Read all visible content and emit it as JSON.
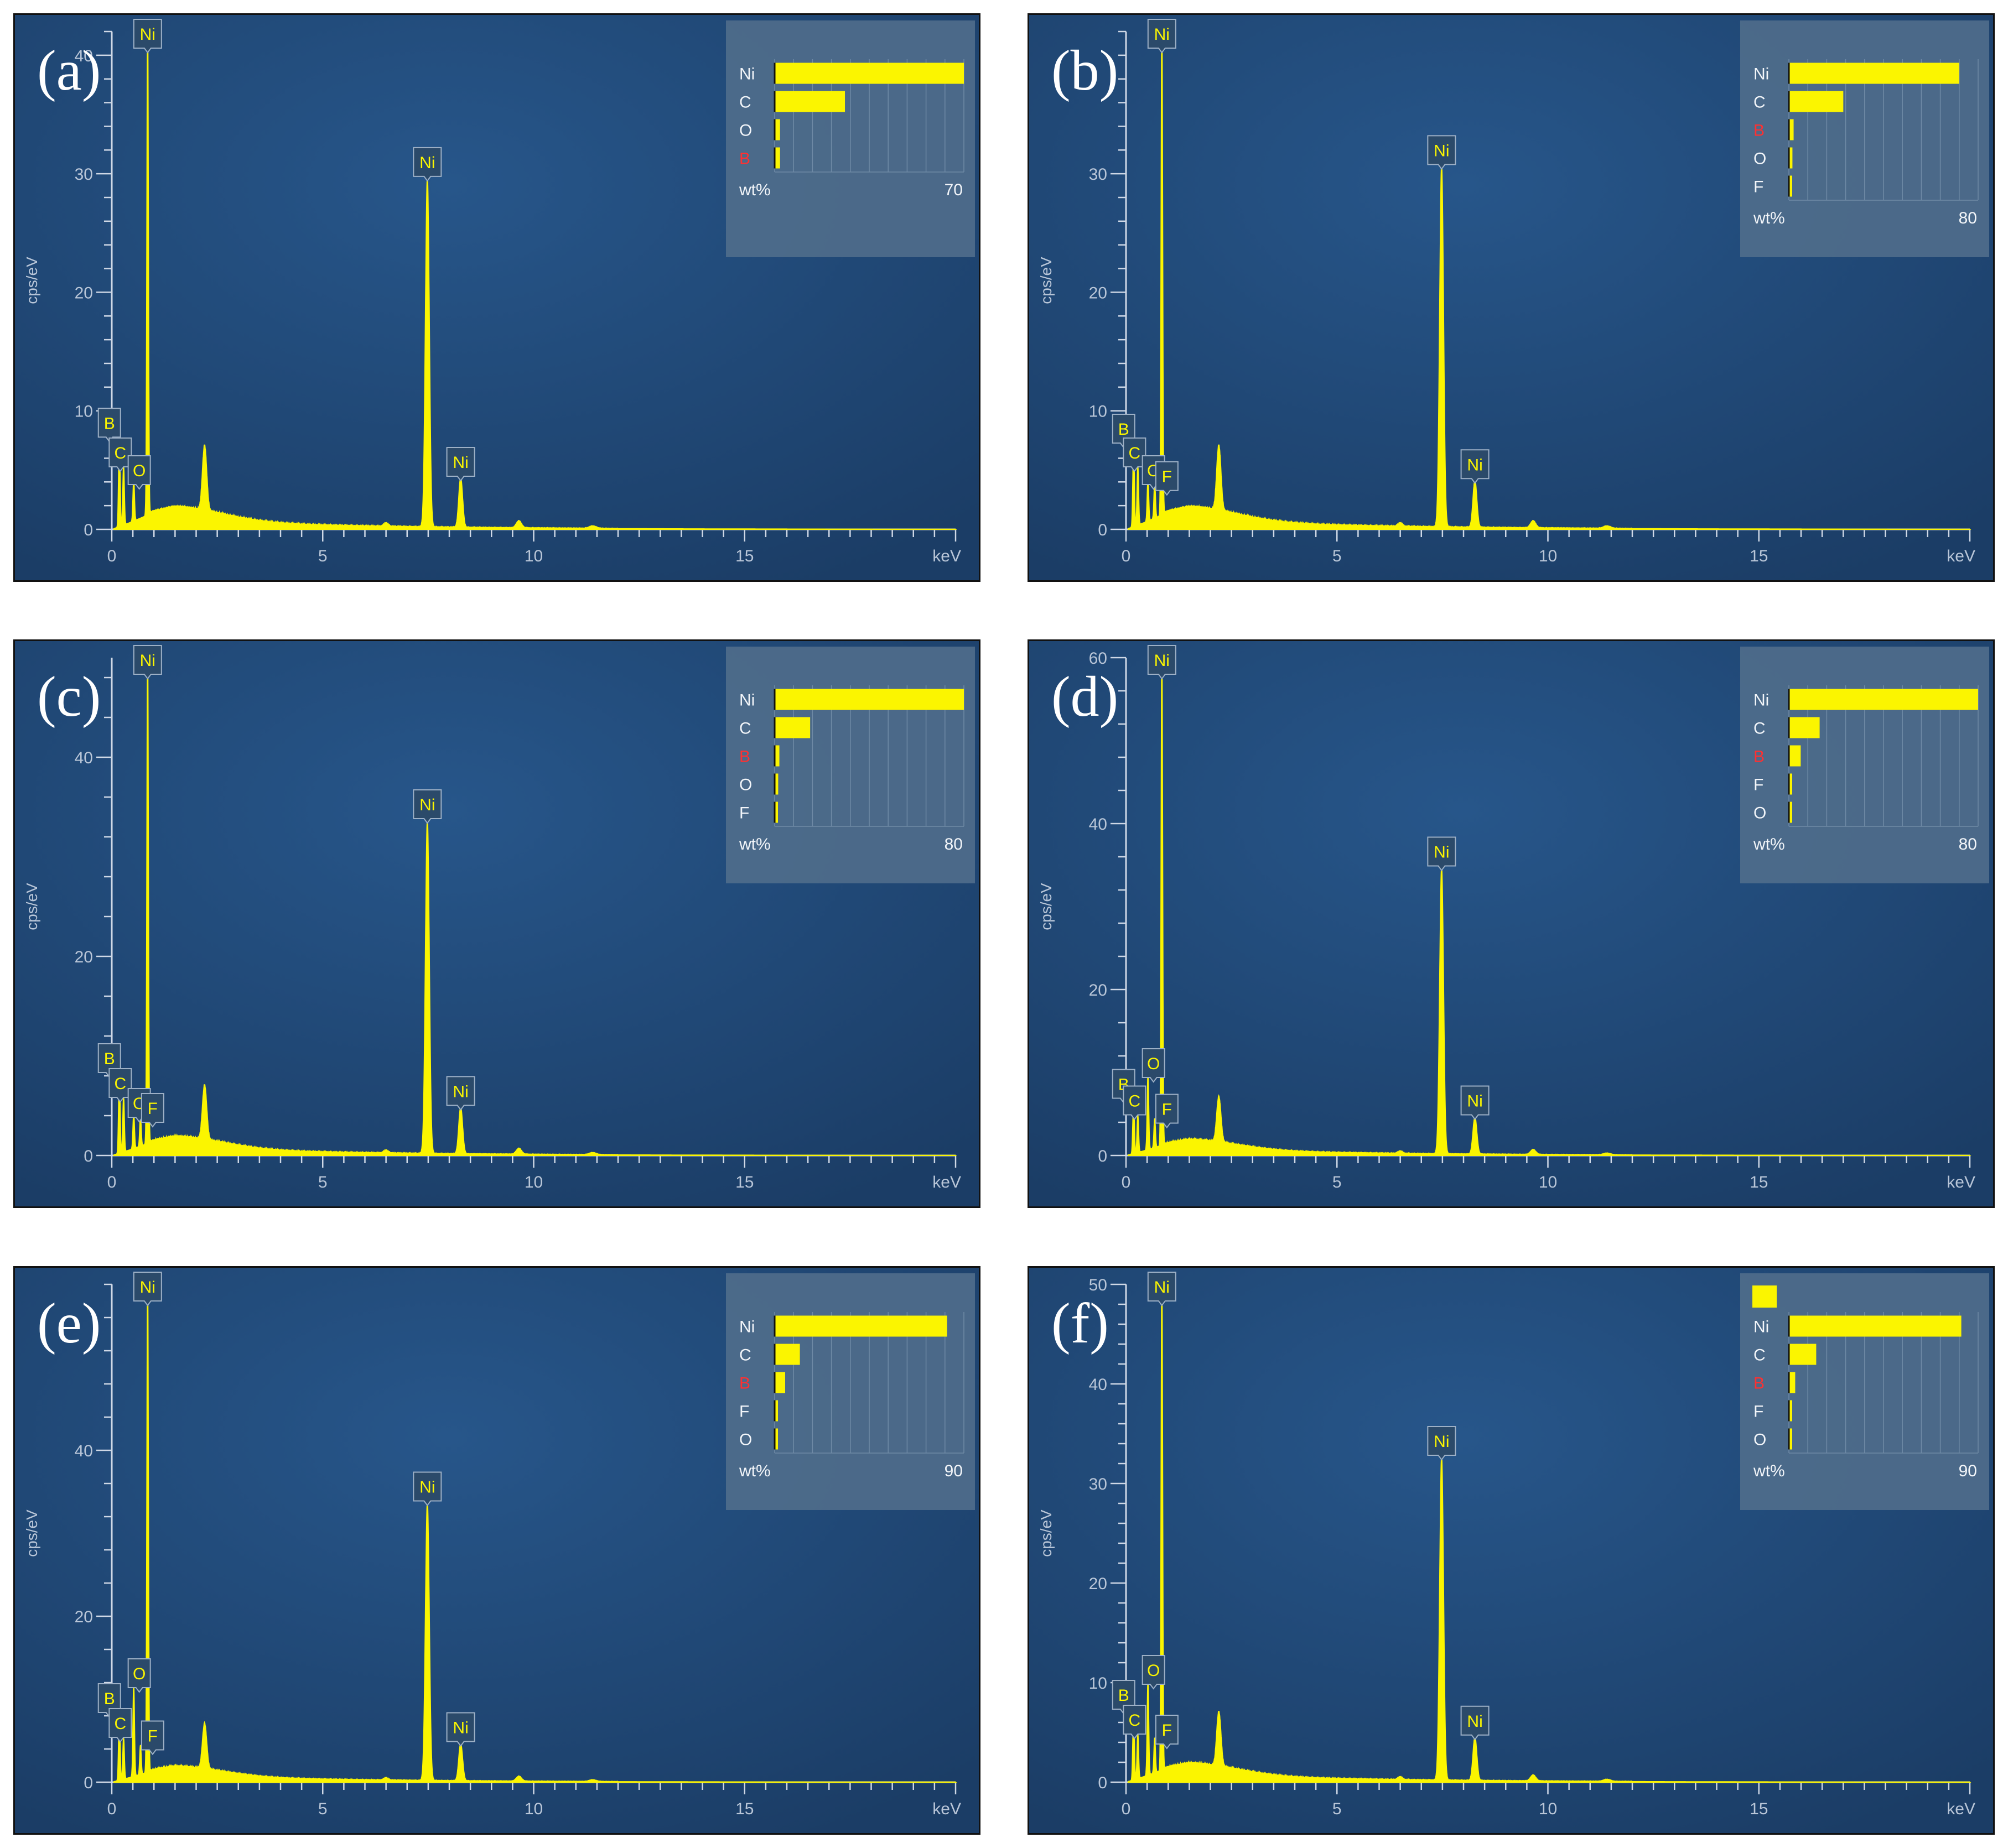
{
  "chart_data": [
    {
      "panel": "(a)",
      "type": "line",
      "xlabel": "keV",
      "ylabel": "cps/eV",
      "xlim": [
        0,
        20
      ],
      "ylim": [
        0,
        42
      ],
      "xticks": [
        0,
        5,
        10,
        15
      ],
      "yticks": [
        0,
        10,
        20,
        30,
        40
      ],
      "peaks": [
        {
          "label": "Ni",
          "x": 0.85,
          "y": 42
        },
        {
          "label": "Ni",
          "x": 7.48,
          "y": 29.5
        },
        {
          "label": "Ni",
          "x": 8.27,
          "y": 4.2
        },
        {
          "label": "B",
          "x": 0.18,
          "y": 7.5
        },
        {
          "label": "C",
          "x": 0.28,
          "y": 5.0
        },
        {
          "label": "O",
          "x": 0.52,
          "y": 3.5
        }
      ],
      "legend": {
        "unit": "wt%",
        "max_tick": "70",
        "elements": [
          {
            "label": "Ni",
            "value": 70,
            "color": "#f2f5f9"
          },
          {
            "label": "C",
            "value": 26,
            "color": "#f2f5f9"
          },
          {
            "label": "O",
            "value": 2,
            "color": "#f2f5f9"
          },
          {
            "label": "B",
            "value": 2,
            "color": "#ff3030"
          }
        ]
      }
    },
    {
      "panel": "(b)",
      "type": "line",
      "xlabel": "keV",
      "ylabel": "cps/eV",
      "xlim": [
        0,
        20
      ],
      "ylim": [
        0,
        42
      ],
      "xticks": [
        0,
        5,
        10,
        15
      ],
      "yticks": [
        0,
        10,
        20,
        30
      ],
      "peaks": [
        {
          "label": "Ni",
          "x": 0.85,
          "y": 42
        },
        {
          "label": "Ni",
          "x": 7.48,
          "y": 30.5
        },
        {
          "label": "Ni",
          "x": 8.27,
          "y": 4.0
        },
        {
          "label": "B",
          "x": 0.18,
          "y": 7.0
        },
        {
          "label": "C",
          "x": 0.28,
          "y": 5.0
        },
        {
          "label": "O",
          "x": 0.52,
          "y": 3.5
        },
        {
          "label": "F",
          "x": 0.68,
          "y": 3.0
        }
      ],
      "legend": {
        "unit": "wt%",
        "max_tick": "80",
        "elements": [
          {
            "label": "Ni",
            "value": 72,
            "color": "#f2f5f9"
          },
          {
            "label": "C",
            "value": 23,
            "color": "#f2f5f9"
          },
          {
            "label": "B",
            "value": 2,
            "color": "#ff3030"
          },
          {
            "label": "O",
            "value": 1.5,
            "color": "#f2f5f9"
          },
          {
            "label": "F",
            "value": 1,
            "color": "#f2f5f9"
          }
        ]
      }
    },
    {
      "panel": "(c)",
      "type": "line",
      "xlabel": "keV",
      "ylabel": "cps/eV",
      "xlim": [
        0,
        20
      ],
      "ylim": [
        0,
        50
      ],
      "xticks": [
        0,
        5,
        10,
        15
      ],
      "yticks": [
        0,
        20,
        40
      ],
      "peaks": [
        {
          "label": "Ni",
          "x": 0.85,
          "y": 50
        },
        {
          "label": "Ni",
          "x": 7.48,
          "y": 33.5
        },
        {
          "label": "Ni",
          "x": 8.27,
          "y": 4.7
        },
        {
          "label": "B",
          "x": 0.18,
          "y": 8.0
        },
        {
          "label": "C",
          "x": 0.28,
          "y": 5.5
        },
        {
          "label": "O",
          "x": 0.52,
          "y": 3.5
        },
        {
          "label": "F",
          "x": 0.68,
          "y": 3.0
        }
      ],
      "legend": {
        "unit": "wt%",
        "max_tick": "80",
        "elements": [
          {
            "label": "Ni",
            "value": 80,
            "color": "#f2f5f9"
          },
          {
            "label": "C",
            "value": 15,
            "color": "#f2f5f9"
          },
          {
            "label": "B",
            "value": 2,
            "color": "#ff3030"
          },
          {
            "label": "O",
            "value": 1.5,
            "color": "#f2f5f9"
          },
          {
            "label": "F",
            "value": 1,
            "color": "#f2f5f9"
          }
        ]
      }
    },
    {
      "panel": "(d)",
      "type": "line",
      "xlabel": "keV",
      "ylabel": "cps/eV",
      "xlim": [
        0,
        20
      ],
      "ylim": [
        0,
        60
      ],
      "xticks": [
        0,
        5,
        10,
        15
      ],
      "yticks": [
        0,
        20,
        40,
        60
      ],
      "peaks": [
        {
          "label": "Ni",
          "x": 0.85,
          "y": 60
        },
        {
          "label": "Ni",
          "x": 7.48,
          "y": 34.5
        },
        {
          "label": "Ni",
          "x": 8.27,
          "y": 4.5
        },
        {
          "label": "O",
          "x": 0.52,
          "y": 9.0
        },
        {
          "label": "B",
          "x": 0.18,
          "y": 6.5
        },
        {
          "label": "C",
          "x": 0.28,
          "y": 4.5
        },
        {
          "label": "F",
          "x": 0.68,
          "y": 3.5
        }
      ],
      "legend": {
        "unit": "wt%",
        "max_tick": "80",
        "elements": [
          {
            "label": "Ni",
            "value": 80,
            "color": "#f2f5f9"
          },
          {
            "label": "C",
            "value": 13,
            "color": "#f2f5f9"
          },
          {
            "label": "B",
            "value": 5,
            "color": "#ff3030"
          },
          {
            "label": "F",
            "value": 1,
            "color": "#f2f5f9"
          },
          {
            "label": "O",
            "value": 1,
            "color": "#f2f5f9"
          }
        ]
      }
    },
    {
      "panel": "(e)",
      "type": "line",
      "xlabel": "keV",
      "ylabel": "cps/eV",
      "xlim": [
        0,
        20
      ],
      "ylim": [
        0,
        60
      ],
      "xticks": [
        0,
        5,
        10,
        15
      ],
      "yticks": [
        0,
        20,
        40
      ],
      "peaks": [
        {
          "label": "Ni",
          "x": 0.85,
          "y": 60
        },
        {
          "label": "Ni",
          "x": 7.48,
          "y": 33.5
        },
        {
          "label": "Ni",
          "x": 8.27,
          "y": 4.5
        },
        {
          "label": "O",
          "x": 0.52,
          "y": 11.0
        },
        {
          "label": "B",
          "x": 0.18,
          "y": 8.0
        },
        {
          "label": "C",
          "x": 0.28,
          "y": 5.0
        },
        {
          "label": "F",
          "x": 0.68,
          "y": 3.5
        }
      ],
      "legend": {
        "unit": "wt%",
        "max_tick": "90",
        "elements": [
          {
            "label": "Ni",
            "value": 82,
            "color": "#f2f5f9"
          },
          {
            "label": "C",
            "value": 12,
            "color": "#f2f5f9"
          },
          {
            "label": "B",
            "value": 5,
            "color": "#ff3030"
          },
          {
            "label": "F",
            "value": 1,
            "color": "#f2f5f9"
          },
          {
            "label": "O",
            "value": 1,
            "color": "#f2f5f9"
          }
        ]
      }
    },
    {
      "panel": "(f)",
      "type": "line",
      "xlabel": "keV",
      "ylabel": "cps/eV",
      "xlim": [
        0,
        20
      ],
      "ylim": [
        0,
        50
      ],
      "xticks": [
        0,
        5,
        10,
        15
      ],
      "yticks": [
        0,
        10,
        20,
        30,
        40,
        50
      ],
      "peaks": [
        {
          "label": "Ni",
          "x": 0.85,
          "y": 50
        },
        {
          "label": "Ni",
          "x": 7.48,
          "y": 32.5
        },
        {
          "label": "Ni",
          "x": 8.27,
          "y": 4.4
        },
        {
          "label": "O",
          "x": 0.52,
          "y": 9.5
        },
        {
          "label": "B",
          "x": 0.18,
          "y": 7.0
        },
        {
          "label": "C",
          "x": 0.28,
          "y": 4.5
        },
        {
          "label": "F",
          "x": 0.68,
          "y": 3.5
        }
      ],
      "legend": {
        "unit": "wt%",
        "max_tick": "90",
        "swatch": true,
        "elements": [
          {
            "label": "Ni",
            "value": 82,
            "color": "#f2f5f9"
          },
          {
            "label": "C",
            "value": 13,
            "color": "#f2f5f9"
          },
          {
            "label": "B",
            "value": 3,
            "color": "#ff3030"
          },
          {
            "label": "F",
            "value": 1,
            "color": "#f2f5f9"
          },
          {
            "label": "O",
            "value": 1,
            "color": "#f2f5f9"
          }
        ]
      }
    }
  ]
}
